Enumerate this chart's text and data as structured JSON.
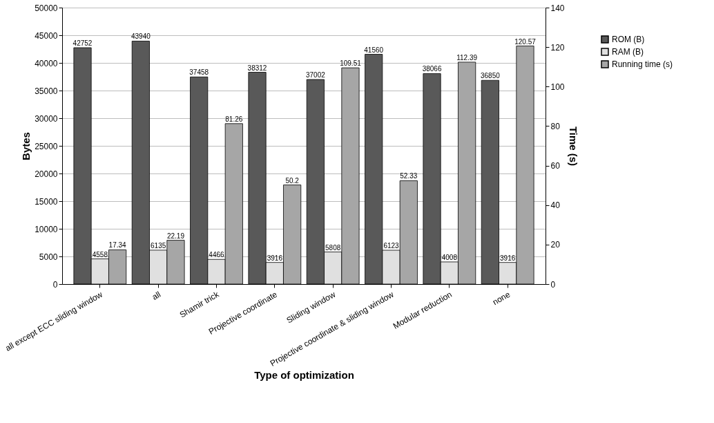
{
  "chart_data": {
    "type": "bar",
    "categories": [
      "all except ECC sliding window",
      "all",
      "Shamir trick",
      "Projective coordinate",
      "Sliding window",
      "Projective coordinate & sliding window",
      "Modular reduction",
      "none"
    ],
    "series": [
      {
        "name": "ROM (B)",
        "color": "#595959",
        "values": [
          42752,
          43940,
          37458,
          38312,
          37002,
          41560,
          38066,
          36850
        ]
      },
      {
        "name": "RAM (B)",
        "color": "#e0e0e0",
        "values": [
          4558,
          6135,
          4466,
          3916,
          5808,
          6123,
          4008,
          3916
        ]
      },
      {
        "name": "Running time (s)",
        "color": "#a6a6a6",
        "axis": "y2",
        "values": [
          17.34,
          22.19,
          81.26,
          50.2,
          109.51,
          52.33,
          112.39,
          120.57
        ]
      }
    ],
    "xlabel": "Type of optimization",
    "ylabel": "Bytes",
    "y2label": "Time (s)",
    "ylim": [
      0,
      50000
    ],
    "yticks": [
      0,
      5000,
      10000,
      15000,
      20000,
      25000,
      30000,
      35000,
      40000,
      45000,
      50000
    ],
    "y2lim": [
      0,
      140
    ],
    "y2ticks": [
      0,
      20,
      40,
      60,
      80,
      100,
      120,
      140
    ],
    "data_labels": true,
    "grid": "y",
    "legend": "top right"
  }
}
